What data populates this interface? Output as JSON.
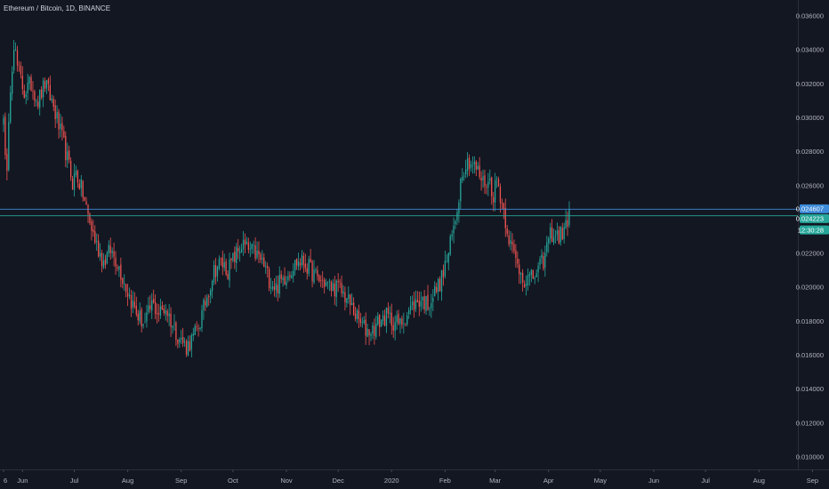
{
  "header": {
    "title": "Ethereum / Bitcoin, 1D, BINANCE"
  },
  "chart_data": {
    "type": "candlestick",
    "symbol": "Ethereum / Bitcoin",
    "interval": "1D",
    "exchange": "BINANCE",
    "ylim": [
      0.009,
      0.0365
    ],
    "y_ticks": [
      "0.036000",
      "0.034000",
      "0.032000",
      "0.030000",
      "0.028000",
      "0.026000",
      "0.022000",
      "0.020000",
      "0.018000",
      "0.016000",
      "0.014000",
      "0.012000",
      "0.010000"
    ],
    "x_ticks": [
      {
        "label": "6",
        "day": 0
      },
      {
        "label": "Jun",
        "day": 11
      },
      {
        "label": "Jul",
        "day": 41
      },
      {
        "label": "Aug",
        "day": 72
      },
      {
        "label": "Sep",
        "day": 103
      },
      {
        "label": "Oct",
        "day": 133
      },
      {
        "label": "Nov",
        "day": 164
      },
      {
        "label": "Dec",
        "day": 194
      },
      {
        "label": "2020",
        "day": 225
      },
      {
        "label": "Feb",
        "day": 256
      },
      {
        "label": "Mar",
        "day": 285
      },
      {
        "label": "Apr",
        "day": 316
      },
      {
        "label": "May",
        "day": 346
      },
      {
        "label": "Jun",
        "day": 377
      },
      {
        "label": "Jul",
        "day": 407
      },
      {
        "label": "Aug",
        "day": 438
      },
      {
        "label": "Sep",
        "day": 469
      }
    ],
    "close_path": [
      [
        0,
        0.03
      ],
      [
        2,
        0.0265
      ],
      [
        4,
        0.032
      ],
      [
        6,
        0.0345
      ],
      [
        8,
        0.033
      ],
      [
        12,
        0.0315
      ],
      [
        16,
        0.032
      ],
      [
        20,
        0.031
      ],
      [
        24,
        0.032
      ],
      [
        28,
        0.031
      ],
      [
        32,
        0.0295
      ],
      [
        36,
        0.028
      ],
      [
        40,
        0.0262
      ],
      [
        42,
        0.0268
      ],
      [
        46,
        0.0255
      ],
      [
        50,
        0.0238
      ],
      [
        54,
        0.0225
      ],
      [
        58,
        0.0215
      ],
      [
        62,
        0.0222
      ],
      [
        66,
        0.0215
      ],
      [
        70,
        0.0203
      ],
      [
        74,
        0.0192
      ],
      [
        78,
        0.0183
      ],
      [
        82,
        0.0178
      ],
      [
        86,
        0.019
      ],
      [
        90,
        0.0185
      ],
      [
        94,
        0.0188
      ],
      [
        98,
        0.0178
      ],
      [
        102,
        0.017
      ],
      [
        106,
        0.0165
      ],
      [
        110,
        0.017
      ],
      [
        114,
        0.018
      ],
      [
        118,
        0.0195
      ],
      [
        122,
        0.021
      ],
      [
        126,
        0.0215
      ],
      [
        130,
        0.021
      ],
      [
        134,
        0.0218
      ],
      [
        138,
        0.0225
      ],
      [
        142,
        0.0222
      ],
      [
        146,
        0.022
      ],
      [
        150,
        0.0215
      ],
      [
        154,
        0.0205
      ],
      [
        158,
        0.02
      ],
      [
        162,
        0.0205
      ],
      [
        166,
        0.021
      ],
      [
        170,
        0.0215
      ],
      [
        174,
        0.0215
      ],
      [
        178,
        0.021
      ],
      [
        182,
        0.0205
      ],
      [
        186,
        0.0203
      ],
      [
        190,
        0.02
      ],
      [
        194,
        0.02
      ],
      [
        198,
        0.0195
      ],
      [
        202,
        0.0188
      ],
      [
        206,
        0.018
      ],
      [
        210,
        0.0175
      ],
      [
        214,
        0.0175
      ],
      [
        218,
        0.018
      ],
      [
        222,
        0.0183
      ],
      [
        226,
        0.018
      ],
      [
        230,
        0.0178
      ],
      [
        234,
        0.0185
      ],
      [
        238,
        0.019
      ],
      [
        242,
        0.0193
      ],
      [
        246,
        0.019
      ],
      [
        250,
        0.0197
      ],
      [
        254,
        0.0205
      ],
      [
        258,
        0.022
      ],
      [
        262,
        0.024
      ],
      [
        266,
        0.027
      ],
      [
        270,
        0.0275
      ],
      [
        274,
        0.027
      ],
      [
        278,
        0.0262
      ],
      [
        282,
        0.0262
      ],
      [
        284,
        0.0255
      ],
      [
        286,
        0.0264
      ],
      [
        290,
        0.0245
      ],
      [
        294,
        0.0225
      ],
      [
        298,
        0.0213
      ],
      [
        302,
        0.0205
      ],
      [
        306,
        0.0205
      ],
      [
        310,
        0.021
      ],
      [
        314,
        0.0218
      ],
      [
        316,
        0.023
      ],
      [
        318,
        0.0232
      ],
      [
        322,
        0.023
      ],
      [
        326,
        0.0235
      ],
      [
        328,
        0.0246
      ]
    ],
    "horizontal_lines": [
      {
        "price": 0.024607,
        "label": "0.024607",
        "color": "#3d8bd9"
      },
      {
        "price": 0.024223,
        "label": "0.024223",
        "color": "#26a69a"
      }
    ],
    "countdown": "12:30:28",
    "colors": {
      "background": "#131722",
      "up": "#26a69a",
      "down": "#ef5350",
      "axis_text": "#b2b5be",
      "axis_line": "#2a2e39",
      "price_line": "#3d8bd9",
      "last_price": "#26a69a"
    }
  }
}
